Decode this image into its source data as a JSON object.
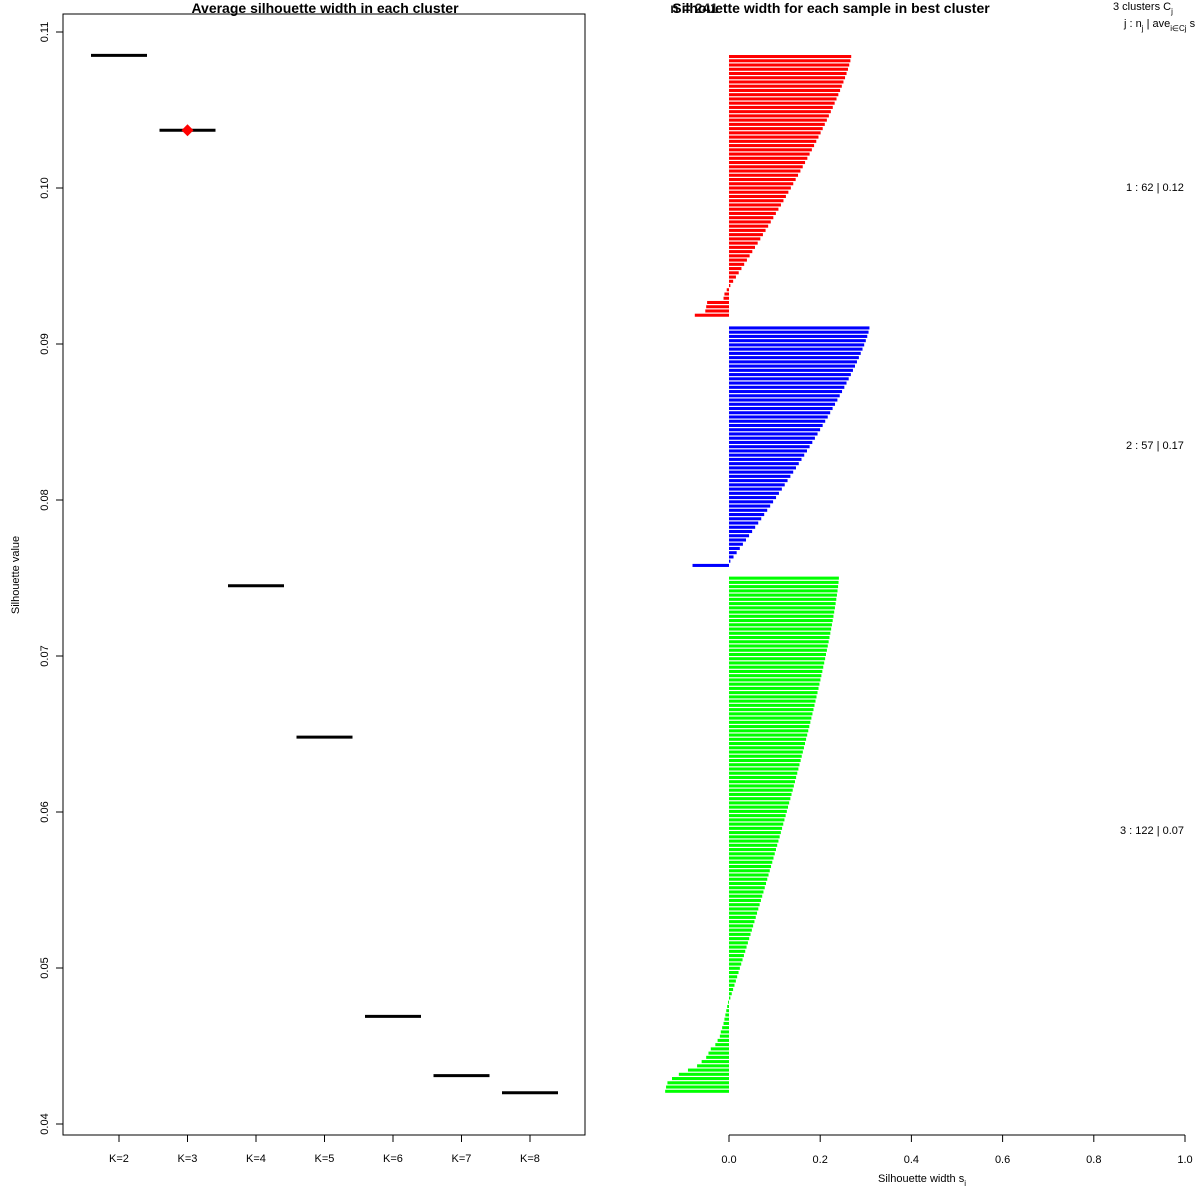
{
  "chart_data": [
    {
      "type": "scatter",
      "title": "Average silhouette width in each cluster",
      "xlabel": "",
      "ylabel": "Silhouette value",
      "ylim": [
        0.04,
        0.11
      ],
      "y_ticks": [
        0.04,
        0.05,
        0.06,
        0.07,
        0.08,
        0.09,
        0.1,
        0.11
      ],
      "y_tick_labels": [
        "0.04",
        "0.05",
        "0.06",
        "0.07",
        "0.08",
        "0.09",
        "0.10",
        "0.11"
      ],
      "categories": [
        "K=2",
        "K=3",
        "K=4",
        "K=5",
        "K=6",
        "K=7",
        "K=8"
      ],
      "values": [
        0.1085,
        0.1037,
        0.0745,
        0.0648,
        0.0469,
        0.0431,
        0.042
      ],
      "best": "K=3",
      "colors": {
        "segment": "#000000",
        "best_marker": "#ff0000"
      }
    },
    {
      "type": "bar",
      "orientation": "horizontal",
      "title": "Silhouette width for each sample in best cluster",
      "title_overlap": "n = 241",
      "xlabel": "Silhouette width s",
      "xlabel_subscript": "i",
      "xlim": [
        0.0,
        1.0
      ],
      "x_ticks": [
        0.0,
        0.2,
        0.4,
        0.6,
        0.8,
        1.0
      ],
      "x_tick_labels": [
        "0.0",
        "0.2",
        "0.4",
        "0.6",
        "0.8",
        "1.0"
      ],
      "legend_header_1": "3  clusters  C",
      "legend_header_1_sub": "j",
      "legend_header_2": "j :  n",
      "legend_header_2_mid": " | ave",
      "legend_header_2_sub": "i∈Cj",
      "legend_header_2_end": "  s",
      "legend_rows": [
        {
          "text": "1 :   62  |  0.12"
        },
        {
          "text": "2 :   57  |  0.17"
        },
        {
          "text": "3 :   122  |  0.07"
        }
      ],
      "series": [
        {
          "cluster": 1,
          "n": 62,
          "color": "#ff0000",
          "min": -0.075,
          "max": 0.265,
          "n_negative": 7,
          "negative_values": [
            -0.005,
            -0.01,
            -0.012,
            -0.048,
            -0.05,
            -0.052,
            -0.075
          ]
        },
        {
          "cluster": 2,
          "n": 57,
          "color": "#0000ff",
          "min": -0.08,
          "max": 0.305,
          "n_negative": 1,
          "negative_values": [
            -0.08
          ]
        },
        {
          "cluster": 3,
          "n": 122,
          "color": "#00ff00",
          "min": -0.14,
          "max": 0.238,
          "n_negative": 22,
          "negative_values": [
            -0.002,
            -0.004,
            -0.006,
            -0.008,
            -0.01,
            -0.012,
            -0.015,
            -0.018,
            -0.02,
            -0.025,
            -0.03,
            -0.04,
            -0.045,
            -0.05,
            -0.06,
            -0.07,
            -0.09,
            -0.11,
            -0.125,
            -0.135,
            -0.138,
            -0.14
          ]
        }
      ]
    }
  ]
}
